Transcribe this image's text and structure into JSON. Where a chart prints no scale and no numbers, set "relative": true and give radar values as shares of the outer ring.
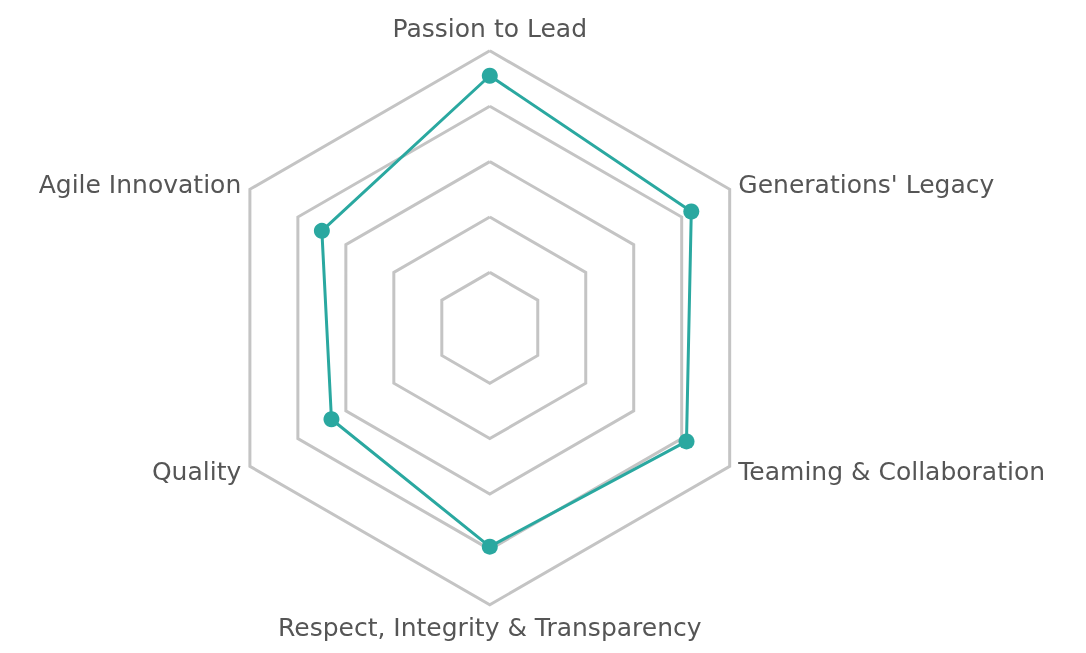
{
  "chart_data": {
    "type": "radar",
    "relative": true,
    "categories": [
      "Passion to Lead",
      "Generations' Legacy",
      "Teaming & Collaboration",
      "Respect, Integrity & Transparency",
      "Quality",
      "Agile Innovation"
    ],
    "series": [
      {
        "color": "#2aa8a0",
        "values": [
          0.91,
          0.84,
          0.82,
          0.79,
          0.66,
          0.7
        ]
      }
    ],
    "marker": "circle",
    "line_style": "solid"
  }
}
